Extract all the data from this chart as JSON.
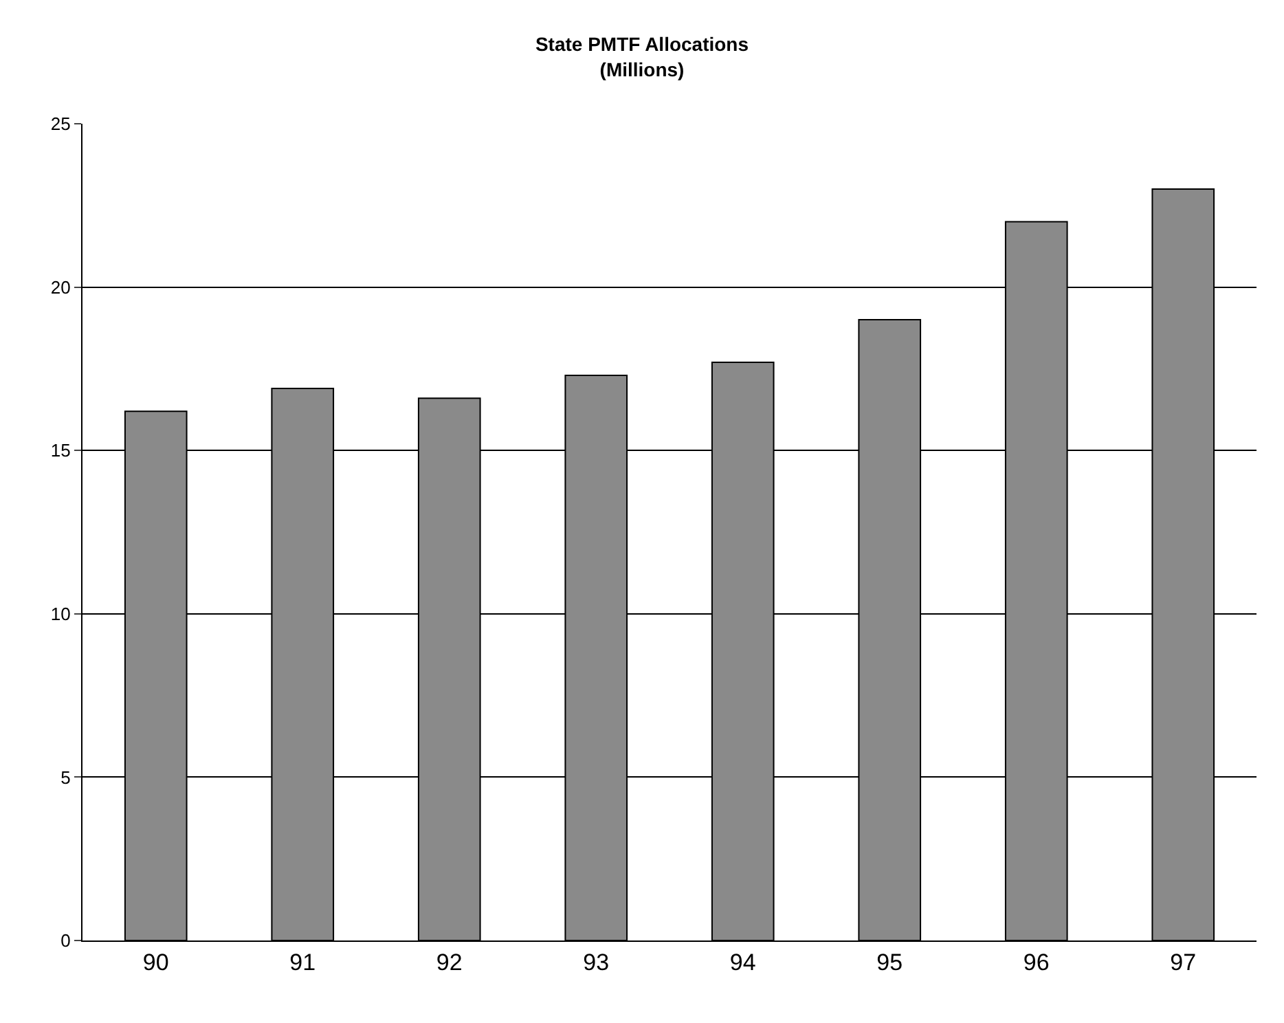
{
  "chart_data": {
    "type": "bar",
    "title": "State PMTF Allocations",
    "subtitle": "(Millions)",
    "categories": [
      "90",
      "91",
      "92",
      "93",
      "94",
      "95",
      "96",
      "97"
    ],
    "values": [
      16.2,
      16.9,
      16.6,
      17.3,
      17.7,
      19.0,
      22.0,
      23.0
    ],
    "color": "#8a8a8a",
    "ylim": [
      0,
      25
    ],
    "yticks": [
      0,
      5,
      10,
      15,
      20,
      25
    ],
    "grid": "y"
  }
}
